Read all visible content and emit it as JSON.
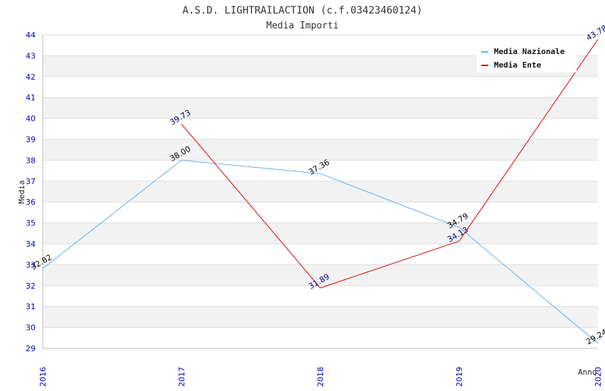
{
  "chart_data": {
    "type": "line",
    "title": "A.S.D. LIGHTRAILACTION (c.f.03423460124)",
    "subtitle": "Media Importi",
    "xlabel": "Anno",
    "ylabel": "Media",
    "categories": [
      "2016",
      "2017",
      "2018",
      "2019",
      "2020"
    ],
    "ylim": [
      29,
      44
    ],
    "yticks": [
      "29",
      "30",
      "31",
      "32",
      "33",
      "34",
      "35",
      "36",
      "37",
      "38",
      "39",
      "40",
      "41",
      "42",
      "43",
      "44"
    ],
    "grid": true,
    "legend_position": "top-right",
    "series": [
      {
        "name": "Media Nazionale",
        "color": "#6ab0e8",
        "label_color": "#000000",
        "values": [
          32.82,
          38.0,
          37.36,
          34.79,
          29.24
        ],
        "labels": [
          "32.82",
          "38.00",
          "37.36",
          "34.79",
          "29.24"
        ]
      },
      {
        "name": "Media Ente",
        "color": "#e00000",
        "label_color": "#000080",
        "values": [
          null,
          39.73,
          31.89,
          34.13,
          43.78
        ],
        "labels": [
          null,
          "39.73",
          "31.89",
          "34.13",
          "43.78"
        ]
      }
    ]
  }
}
